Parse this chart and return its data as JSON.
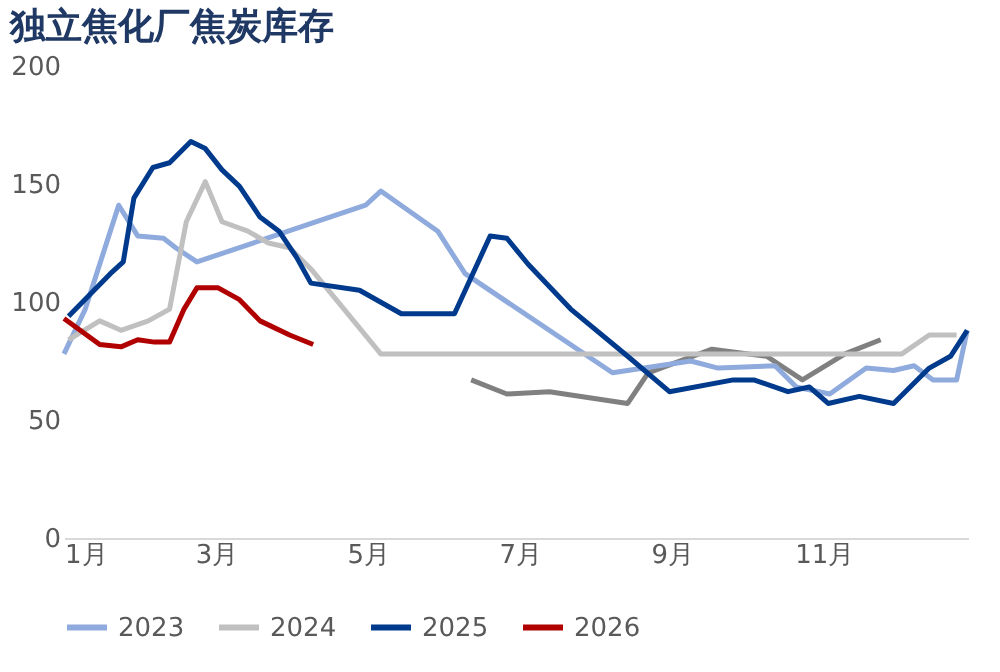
{
  "chart_data": {
    "type": "line",
    "title": "独立焦化厂焦炭库存",
    "xlim": [
      1,
      12.9
    ],
    "xticks": [
      {
        "value": 1,
        "label": "1月"
      },
      {
        "value": 3,
        "label": "3月"
      },
      {
        "value": 5,
        "label": "5月"
      },
      {
        "value": 7,
        "label": "7月"
      },
      {
        "value": 9,
        "label": "9月"
      },
      {
        "value": 11,
        "label": "11月"
      }
    ],
    "ylim": [
      0,
      200
    ],
    "yticks": [
      0,
      50,
      100,
      150,
      200
    ],
    "grid": false,
    "legend": "bottom",
    "marker": "none",
    "line_style": "solid",
    "series": [
      {
        "color": "#808080",
        "x": [
          6.36,
          6.83,
          7.39,
          8.42,
          8.69,
          9.53,
          10.25,
          10.72,
          11.28,
          11.75
        ],
        "values": [
          67,
          61,
          62,
          57,
          70,
          80,
          77,
          67,
          78,
          84
        ]
      },
      {
        "name": "2023",
        "color": "#8faadc",
        "x": [
          1.0,
          1.28,
          1.72,
          1.97,
          2.31,
          2.47,
          2.75,
          4.97,
          5.17,
          5.92,
          6.28,
          8.22,
          9.25,
          9.61,
          10.36,
          10.64,
          11.08,
          11.56,
          11.92,
          12.19,
          12.44,
          12.75,
          12.89
        ],
        "values": [
          78,
          97,
          141,
          128,
          127,
          123,
          117,
          141,
          147,
          130,
          112,
          70,
          75,
          72,
          73,
          64,
          61,
          72,
          71,
          73,
          67,
          67,
          88
        ]
      },
      {
        "name": "2024",
        "color": "#c0c0c0",
        "x": [
          1.06,
          1.47,
          1.75,
          2.11,
          2.39,
          2.61,
          2.86,
          3.08,
          3.42,
          3.69,
          3.97,
          4.25,
          5.17,
          12.03,
          12.39,
          12.75
        ],
        "values": [
          84,
          92,
          88,
          92,
          97,
          134,
          151,
          134,
          130,
          125,
          123,
          114,
          78,
          78,
          86,
          86
        ]
      },
      {
        "name": "2025",
        "color": "#003a8c",
        "x": [
          1.06,
          1.61,
          1.78,
          1.92,
          2.17,
          2.39,
          2.67,
          2.86,
          3.08,
          3.31,
          3.58,
          3.83,
          4.06,
          4.25,
          4.89,
          5.44,
          6.14,
          6.61,
          6.83,
          7.11,
          7.67,
          8.42,
          8.97,
          9.81,
          10.08,
          10.53,
          10.81,
          11.06,
          11.47,
          11.92,
          12.39,
          12.67,
          12.89
        ],
        "values": [
          94,
          112,
          117,
          144,
          157,
          159,
          168,
          165,
          156,
          149,
          136,
          130,
          119,
          108,
          105,
          95,
          95,
          128,
          127,
          116,
          97,
          77,
          62,
          67,
          67,
          62,
          64,
          57,
          60,
          57,
          72,
          77,
          88
        ]
      },
      {
        "name": "2026",
        "color": "#b00000",
        "x": [
          1.0,
          1.47,
          1.75,
          1.97,
          2.19,
          2.39,
          2.58,
          2.75,
          3.03,
          3.31,
          3.58,
          3.97,
          4.28
        ],
        "values": [
          93,
          82,
          81,
          84,
          83,
          83,
          97,
          106,
          106,
          101,
          92,
          86,
          82
        ]
      }
    ]
  }
}
